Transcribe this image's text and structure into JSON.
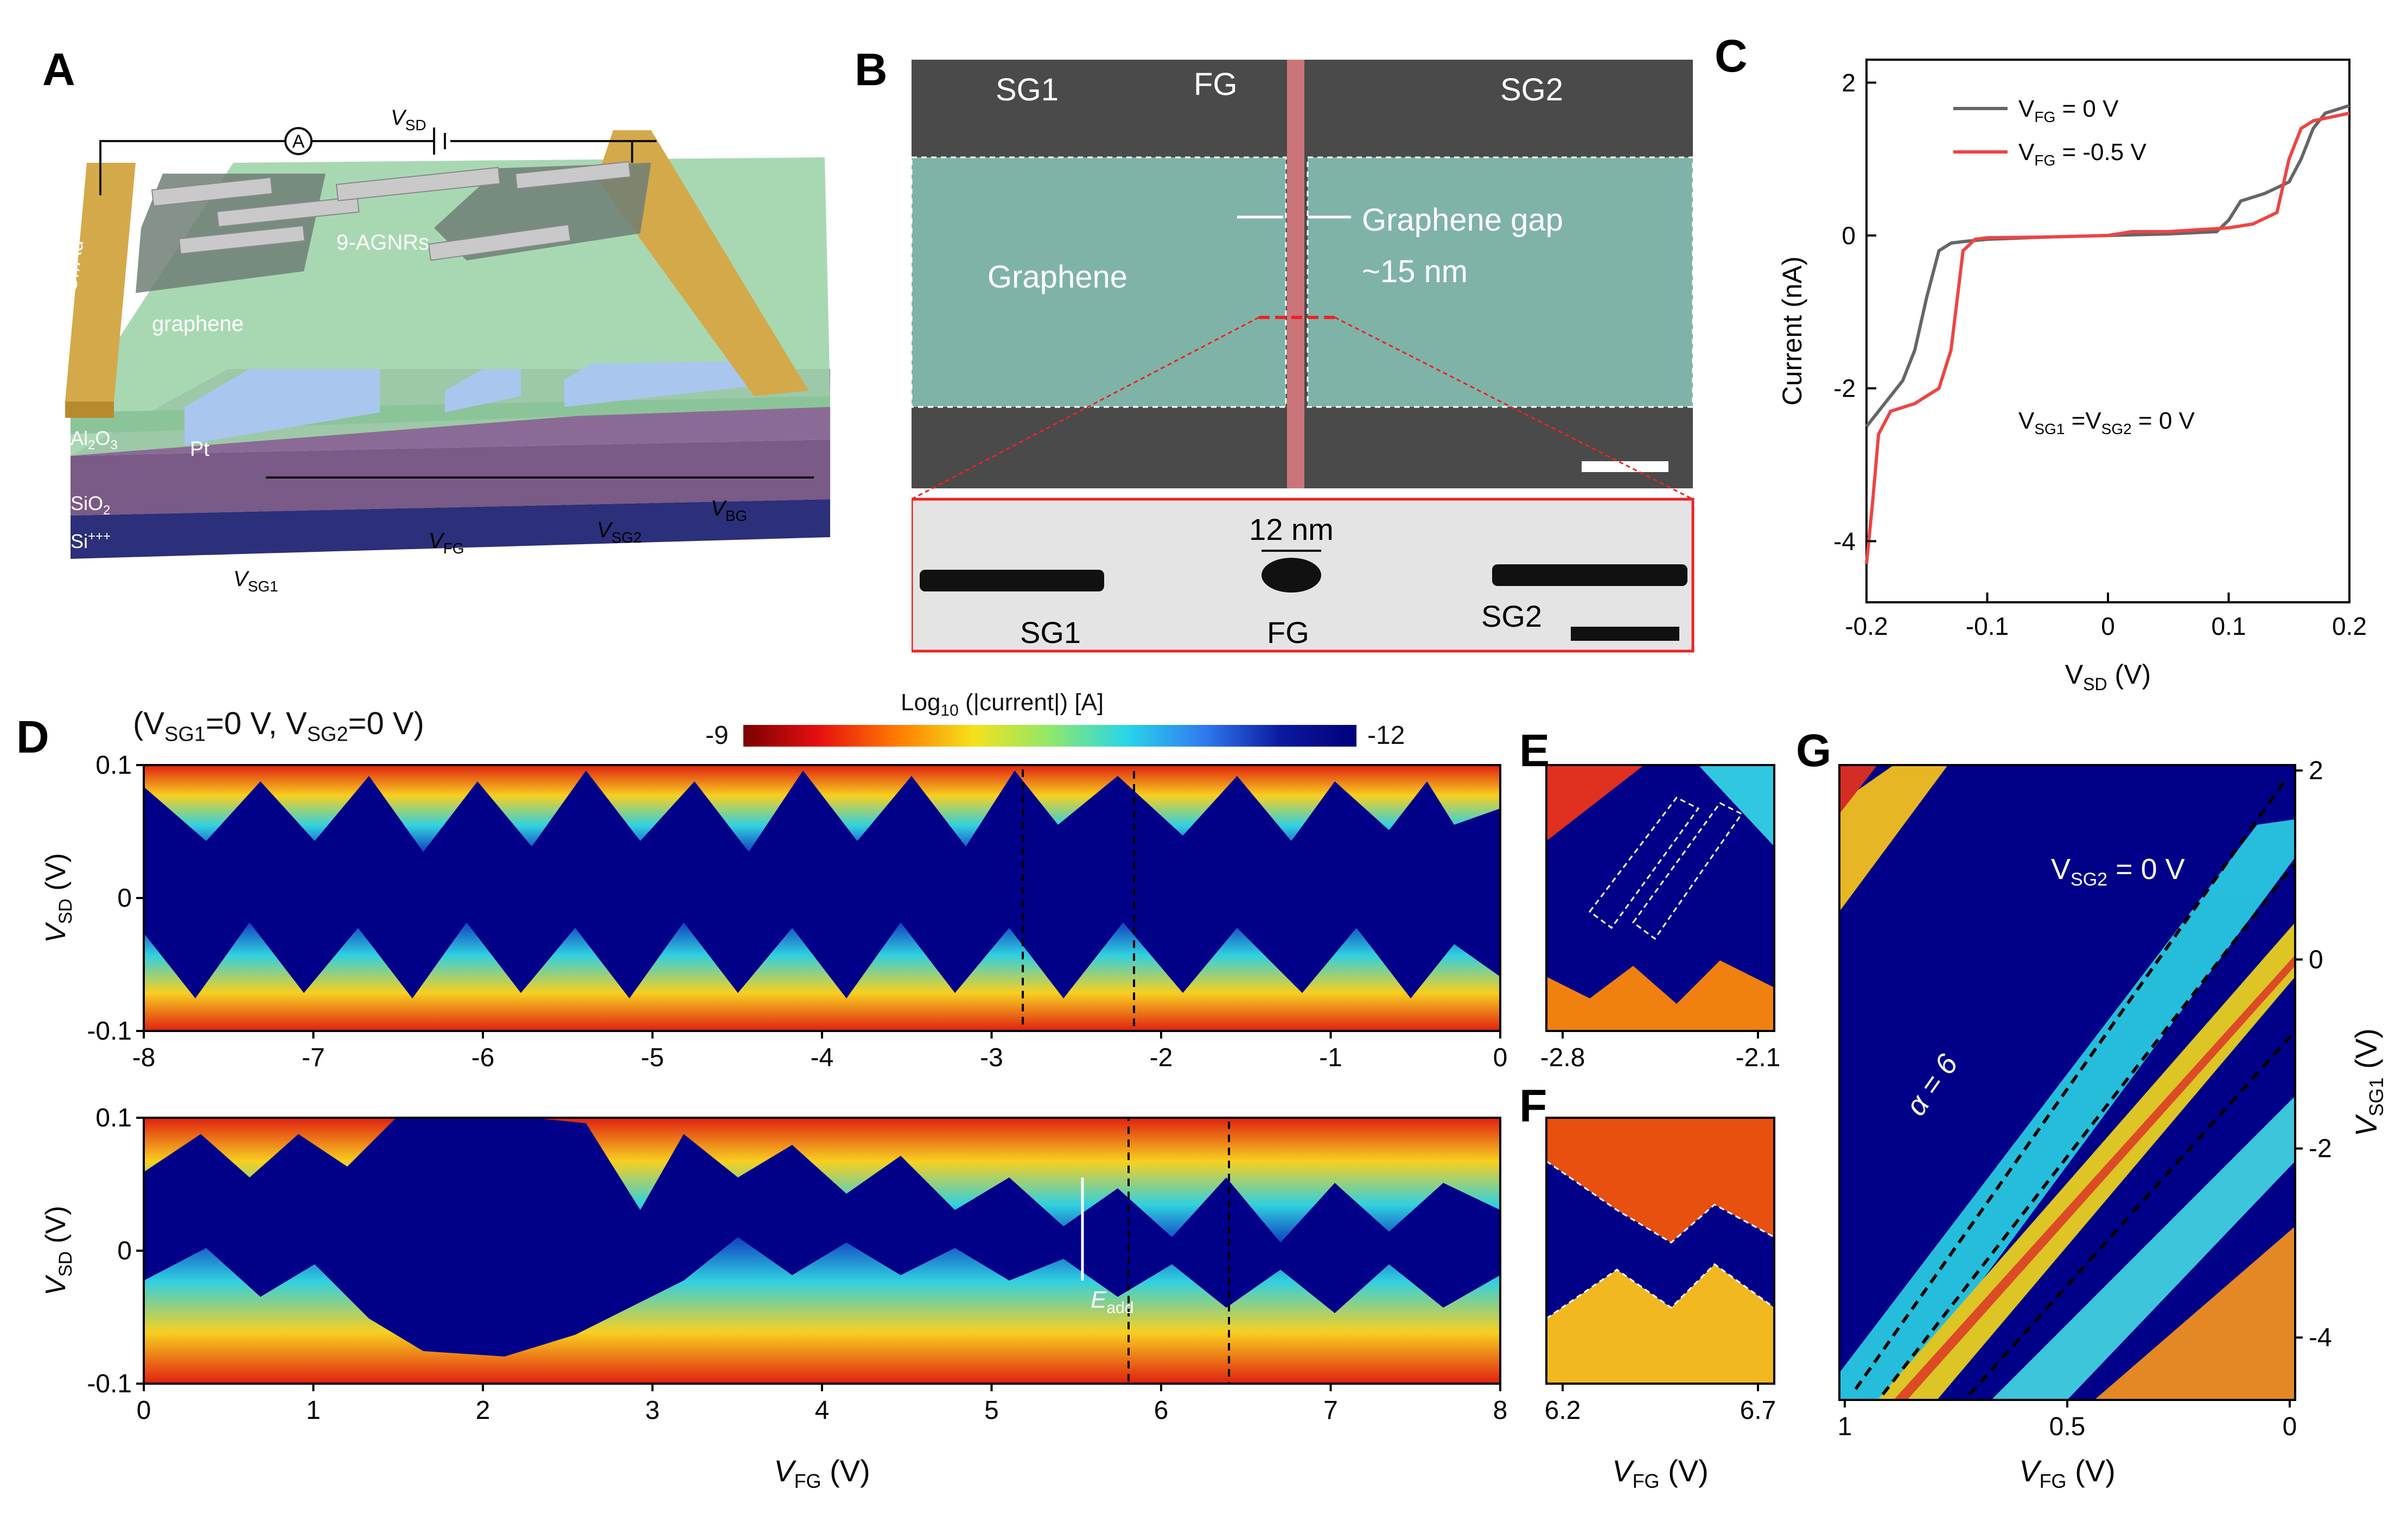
{
  "panel_labels": {
    "a": "A",
    "b": "B",
    "c": "C",
    "d": "D",
    "e": "E",
    "f": "F",
    "g": "G"
  },
  "panel_a": {
    "circuit": {
      "ammeter": "A",
      "vsd": "V",
      "vsd_sub": "SD",
      "vsg1": "V",
      "vsg1_sub": "SG1",
      "vfg": "V",
      "vfg_sub": "FG",
      "vsg2": "V",
      "vsg2_sub": "SG2",
      "vbg": "V",
      "vbg_sub": "BG"
    },
    "layers": {
      "electrode": "Cr/Au",
      "ribbons": "9-AGNRs",
      "graphene": "graphene",
      "al2o3": "Al",
      "al2o3_sub2": "2",
      "al2o3_o": "O",
      "al2o3_sub3": "3",
      "pt": "Pt",
      "sio2": "SiO",
      "sio2_sub": "2",
      "si": "Si",
      "si_sup": "+++"
    },
    "colors": {
      "gold": "#d4a94a",
      "green": "#9fcfa6",
      "purple": "#7a5a86",
      "si": "#2c2f7a",
      "pt": "#a9c6ee"
    }
  },
  "panel_b": {
    "sg1": "SG1",
    "fg": "FG",
    "sg2": "SG2",
    "graphene": "Graphene",
    "gap_label": "Graphene gap",
    "gap_size": "~15 nm",
    "inset": {
      "width": "12 nm",
      "sg1": "SG1",
      "fg": "FG",
      "sg2": "SG2"
    }
  },
  "panel_c": {
    "chart_data": {
      "type": "line",
      "xlabel": "V",
      "xlabel_sub": "SD",
      "xlabel_unit": " (V)",
      "ylabel": "Current (nA)",
      "xlim": [
        -0.2,
        0.2
      ],
      "ylim": [
        -4.8,
        2.3
      ],
      "xticks": [
        "-0.2",
        "-0.1",
        "0",
        "0.1",
        "0.2"
      ],
      "yticks": [
        "2",
        "0",
        "-2",
        "-4"
      ],
      "annotation": "V",
      "annotation_sub": "SG1",
      "annotation_mid": " =V",
      "annotation_sub2": "SG2",
      "annotation_end": " = 0 V",
      "series": [
        {
          "name": "V",
          "name_sub": "FG",
          "name_end": " = 0 V",
          "color": "#666666",
          "x": [
            -0.2,
            -0.19,
            -0.18,
            -0.17,
            -0.16,
            -0.15,
            -0.14,
            -0.13,
            -0.12,
            -0.1,
            -0.05,
            0,
            0.05,
            0.09,
            0.1,
            0.11,
            0.13,
            0.15,
            0.16,
            0.17,
            0.18,
            0.2
          ],
          "y": [
            -2.5,
            -2.3,
            -2.1,
            -1.9,
            -1.5,
            -0.8,
            -0.2,
            -0.1,
            -0.08,
            -0.05,
            -0.02,
            0,
            0.02,
            0.05,
            0.2,
            0.45,
            0.55,
            0.7,
            1.0,
            1.4,
            1.6,
            1.7
          ]
        },
        {
          "name": "V",
          "name_sub": "FG",
          "name_end": " = -0.5 V",
          "color": "#ee4444",
          "x": [
            -0.2,
            -0.195,
            -0.19,
            -0.18,
            -0.16,
            -0.14,
            -0.13,
            -0.12,
            -0.11,
            -0.1,
            -0.05,
            0,
            0.02,
            0.05,
            0.1,
            0.12,
            0.14,
            0.15,
            0.16,
            0.17,
            0.2
          ],
          "y": [
            -4.3,
            -3.5,
            -2.6,
            -2.3,
            -2.2,
            -2.0,
            -1.5,
            -0.2,
            -0.05,
            -0.03,
            -0.02,
            0,
            0.05,
            0.05,
            0.1,
            0.15,
            0.3,
            1.0,
            1.4,
            1.5,
            1.6
          ]
        }
      ]
    }
  },
  "panel_d": {
    "condition": "(V",
    "condition_sub1": "SG1",
    "condition_mid": "=0 V, V",
    "condition_sub2": "SG2",
    "condition_end": "=0 V)",
    "colorbar": {
      "label": "Log",
      "label_sub": "10",
      "label_end": " (|current|) [A]",
      "min": "-9",
      "max": "-12"
    },
    "top": {
      "xticks": [
        "-8",
        "-7",
        "-6",
        "-5",
        "-4",
        "-3",
        "-2",
        "-1",
        "0"
      ],
      "yticks": [
        "0.1",
        "0",
        "-0.1"
      ],
      "ylabel": "V",
      "ylabel_sub": "SD",
      "ylabel_unit": " (V)"
    },
    "bottom": {
      "xticks": [
        "0",
        "1",
        "2",
        "3",
        "4",
        "5",
        "6",
        "7",
        "8"
      ],
      "yticks": [
        "0.1",
        "0",
        "-0.1"
      ],
      "ylabel": "V",
      "ylabel_sub": "SD",
      "ylabel_unit": " (V)",
      "xlabel": "V",
      "xlabel_sub": "FG",
      "xlabel_unit": " (V)",
      "annotation": "E",
      "annotation_sub": "add"
    }
  },
  "panel_e": {
    "xticks": [
      "-2.8",
      "-2.1"
    ]
  },
  "panel_f": {
    "xticks": [
      "6.2",
      "6.7"
    ],
    "xlabel": "V",
    "xlabel_sub": "FG",
    "xlabel_unit": " (V)"
  },
  "panel_g": {
    "xticks": [
      "1",
      "0.5",
      "0"
    ],
    "yticks": [
      "2",
      "0",
      "-2",
      "-4"
    ],
    "xlabel": "V",
    "xlabel_sub": "FG",
    "xlabel_unit": " (V)",
    "ylabel": "V",
    "ylabel_sub": "SG1",
    "ylabel_unit": " (V)",
    "annotation": "V",
    "annotation_sub": "SG2",
    "annotation_end": " = 0 V",
    "alpha": "α = 6"
  }
}
